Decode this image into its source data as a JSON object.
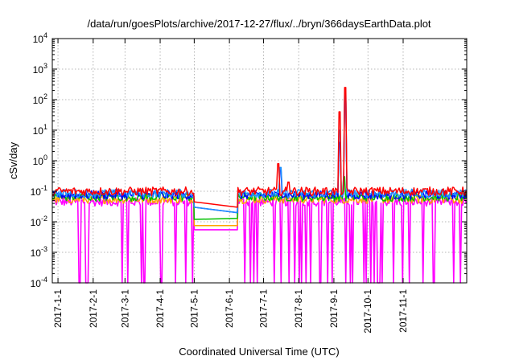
{
  "chart_data": {
    "type": "line",
    "title": "/data/run/goesPlots/archive/2017-12-27/flux/../bryn/366daysEarthData.plot",
    "xlabel": "Coordinated Universal Time (UTC)",
    "ylabel": "cSv/day",
    "yscale": "log",
    "ylim": [
      0.0001,
      10000
    ],
    "xlim": [
      "2016-12-27",
      "2017-12-27"
    ],
    "grid": true,
    "legend": "none",
    "x_ticks": [
      "2017-1-1",
      "2017-2-1",
      "2017-3-1",
      "2017-4-1",
      "2017-5-1",
      "2017-6-1",
      "2017-7-1",
      "2017-8-1",
      "2017-9-1",
      "2017-10-1",
      "2017-11-1"
    ],
    "y_ticks": [
      {
        "base": "10",
        "exp": "-4",
        "value": 0.0001
      },
      {
        "base": "10",
        "exp": "-3",
        "value": 0.001
      },
      {
        "base": "10",
        "exp": "-2",
        "value": 0.01
      },
      {
        "base": "10",
        "exp": "-1",
        "value": 0.1
      },
      {
        "base": "10",
        "exp": "0",
        "value": 1
      },
      {
        "base": "10",
        "exp": "1",
        "value": 10
      },
      {
        "base": "10",
        "exp": "2",
        "value": 100
      },
      {
        "base": "10",
        "exp": "3",
        "value": 1000
      },
      {
        "base": "10",
        "exp": "4",
        "value": 10000
      }
    ],
    "gap": {
      "start": "2017-05-01",
      "end": "2017-06-08"
    },
    "series": [
      {
        "color": "#ff00ff",
        "base": 0.045,
        "floor": 0.0001,
        "features": [
          {
            "x": "2017-05-01",
            "y": 0.0055
          },
          {
            "x": "2017-06-08",
            "y": 0.0055
          }
        ]
      },
      {
        "color": "#ffa500",
        "base": 0.055,
        "features": [
          {
            "x": "2017-05-01",
            "y": 0.0075
          },
          {
            "x": "2017-06-08",
            "y": 0.0075
          }
        ]
      },
      {
        "color": "#00c000",
        "base": 0.065,
        "features": [
          {
            "x": "2017-05-01",
            "y": 0.012
          },
          {
            "x": "2017-06-08",
            "y": 0.013
          },
          {
            "x": "2017-09-10",
            "y": 0.3
          }
        ]
      },
      {
        "color": "#0000ff",
        "base": 0.075,
        "features": [
          {
            "x": "2017-05-01",
            "y": 0.03
          },
          {
            "x": "2017-06-08",
            "y": 0.02
          },
          {
            "x": "2017-07-16",
            "y": 0.5
          },
          {
            "x": "2017-09-06",
            "y": 4
          },
          {
            "x": "2017-09-11",
            "y": 150
          }
        ]
      },
      {
        "color": "#1e90ff",
        "base": 0.085,
        "features": [
          {
            "x": "2017-05-01",
            "y": 0.03
          },
          {
            "x": "2017-06-08",
            "y": 0.02
          },
          {
            "x": "2017-07-16",
            "y": 0.6
          },
          {
            "x": "2017-09-06",
            "y": 10
          },
          {
            "x": "2017-09-11",
            "y": 200
          }
        ]
      },
      {
        "color": "#ff0000",
        "base": 0.1,
        "features": [
          {
            "x": "2017-05-01",
            "y": 0.045
          },
          {
            "x": "2017-06-08",
            "y": 0.03
          },
          {
            "x": "2017-07-14",
            "y": 0.8
          },
          {
            "x": "2017-07-23",
            "y": 0.2
          },
          {
            "x": "2017-09-06",
            "y": 40
          },
          {
            "x": "2017-09-11",
            "y": 250
          }
        ]
      }
    ]
  }
}
